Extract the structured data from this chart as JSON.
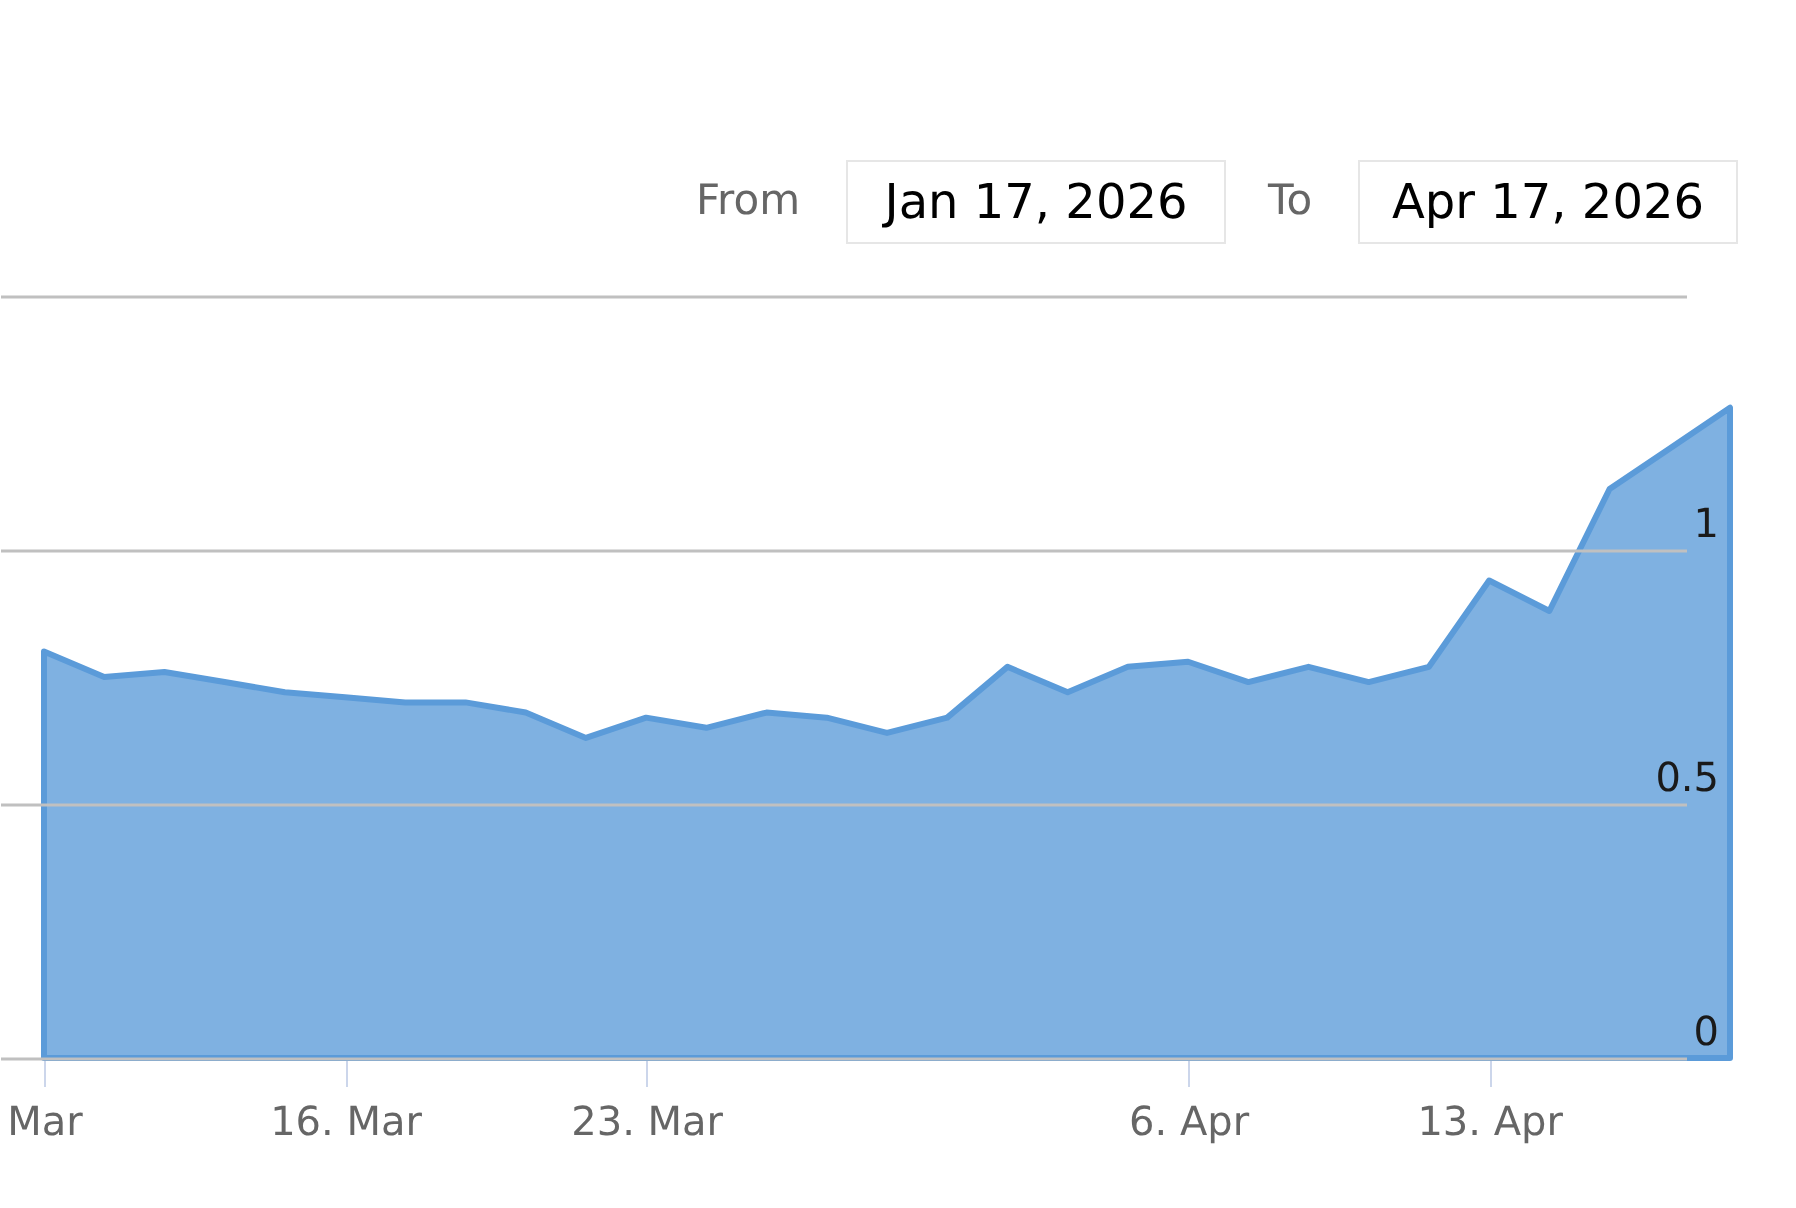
{
  "chart_data": {
    "type": "area",
    "categories": [
      "Mar",
      null,
      null,
      null,
      null,
      "16. Mar",
      null,
      null,
      null,
      null,
      "23. Mar",
      null,
      null,
      null,
      null,
      null,
      null,
      null,
      null,
      "6. Apr",
      null,
      null,
      null,
      null,
      "13. Apr",
      null,
      null,
      null,
      null
    ],
    "series": [
      {
        "color": "#5b9bd9",
        "values": [
          0.8,
          0.75,
          0.76,
          0.74,
          0.72,
          0.71,
          0.7,
          0.7,
          0.68,
          0.63,
          0.67,
          0.65,
          0.68,
          0.67,
          0.64,
          0.67,
          0.77,
          0.72,
          0.77,
          0.78,
          0.74,
          0.77,
          0.74,
          0.77,
          0.94,
          0.88,
          1.12,
          1.2,
          1.28
        ]
      }
    ],
    "ylim": [
      0,
      1.5
    ],
    "yticks": [
      0,
      0.5,
      1,
      {
        "value": 1.5,
        "label": null
      }
    ],
    "grid": "y",
    "annotations": [
      "From",
      "Jan 17, 2026",
      "To",
      "Apr 17, 2026"
    ]
  }
}
